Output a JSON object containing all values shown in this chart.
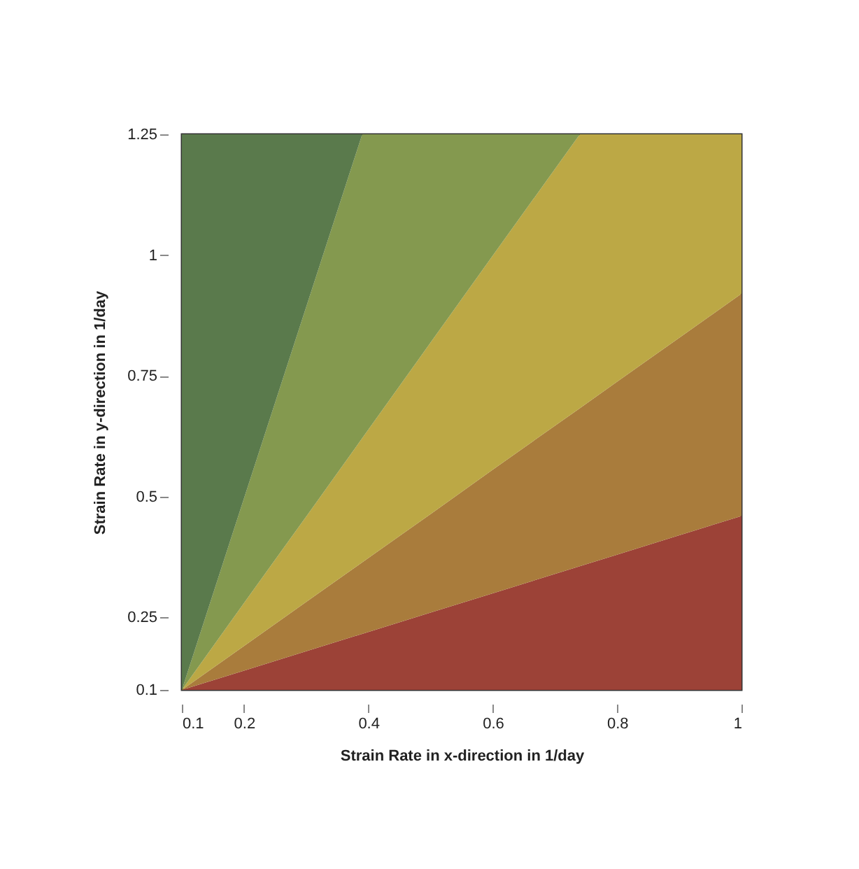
{
  "chart_data": {
    "type": "area",
    "xlabel": "Strain Rate in x-direction in 1/day",
    "ylabel": "Strain Rate in y-direction in 1/day",
    "x": [
      0.1,
      0.2,
      0.3,
      0.39,
      0.5,
      0.6,
      0.74,
      0.8,
      0.9,
      1
    ],
    "series": [
      {
        "color": "#9c4237",
        "values": [
          0.1,
          0.14,
          0.18,
          0.216,
          0.26,
          0.3,
          0.356,
          0.38,
          0.42,
          0.46
        ]
      },
      {
        "color": "#a97c3c",
        "values": [
          0.1,
          0.191,
          0.282,
          0.364,
          0.464,
          0.556,
          0.683,
          0.738,
          0.829,
          0.92
        ]
      },
      {
        "color": "#bca845",
        "values": [
          0.1,
          0.28,
          0.459,
          0.621,
          0.819,
          0.999,
          1.25,
          1.25,
          1.25,
          1.25
        ]
      },
      {
        "color": "#84994f",
        "x": [
          0.1,
          0.2,
          0.3,
          0.39,
          0.5,
          0.6,
          0.74
        ],
        "values": [
          0.1,
          0.497,
          0.893,
          1.25,
          1.25,
          1.25,
          1.25
        ]
      },
      {
        "color": "#5a7a4c",
        "x": [
          0.1,
          0.2,
          0.3,
          0.39
        ],
        "values": [
          1.25,
          1.25,
          1.25,
          1.25
        ]
      }
    ],
    "xlim": [
      0.1,
      1
    ],
    "xticks": [
      0.1,
      0.2,
      0.4,
      0.6,
      0.8,
      1
    ],
    "ylim": [
      0.1,
      1.25
    ],
    "yticks": [
      0.1,
      0.25,
      0.5,
      0.75,
      1,
      1.25
    ],
    "grid": false,
    "legend": false
  }
}
